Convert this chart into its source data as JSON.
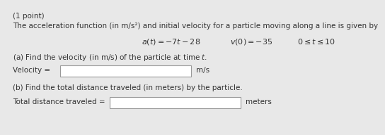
{
  "bg_color": "#e8e8e8",
  "text_color": "#333333",
  "box_color": "#ffffff",
  "box_edge_color": "#999999",
  "font_size": 7.5,
  "font_size_small": 7.0,
  "title": "(1 point)",
  "line1": "The acceleration function (in m/s²) and initial velocity for a particle moving along a line is given by",
  "formula_main": "$a(t) = -7t - 28$",
  "formula_v": "$v(0) = -35$",
  "formula_range": "$0 \\leq t \\leq 10$",
  "part_a_text": "(a) Find the velocity (in m/s) of the particle at time $t$.",
  "velocity_label": "Velocity =",
  "velocity_unit": "m/s",
  "part_b_text": "(b) Find the total distance traveled (in meters) by the particle.",
  "distance_label": "Total distance traveled =",
  "distance_unit": "meters"
}
